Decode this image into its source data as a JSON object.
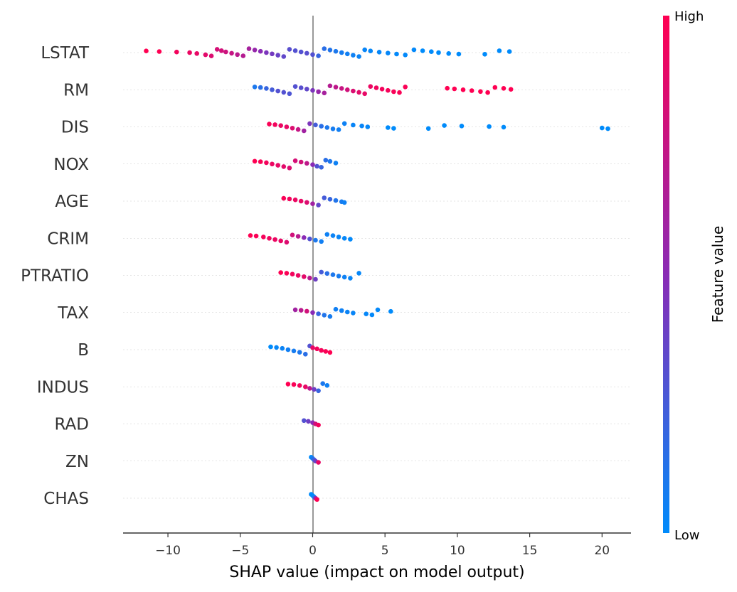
{
  "chart_data": {
    "type": "scatter",
    "subtype": "shap-beeswarm",
    "title": "",
    "xlabel": "SHAP value (impact on model output)",
    "ylabel": "",
    "xlim": [
      -13.1,
      22.0
    ],
    "xticks": [
      -10,
      -5,
      0,
      5,
      10,
      15,
      20
    ],
    "xtick_labels": [
      "−10",
      "−5",
      "0",
      "5",
      "10",
      "15",
      "20"
    ],
    "grid": false,
    "colorbar": {
      "title": "Feature value",
      "high_label": "High",
      "low_label": "Low",
      "high_color": "#ff0052",
      "mid_color": "#8a2bb5",
      "low_color": "#008bfb"
    },
    "features": [
      {
        "name": "LSTAT",
        "points": [
          [
            -11.5,
            1.0
          ],
          [
            -10.6,
            1.0
          ],
          [
            -9.4,
            0.95
          ],
          [
            -8.5,
            0.92
          ],
          [
            -8.0,
            0.9
          ],
          [
            -7.4,
            0.88
          ],
          [
            -7.0,
            0.85
          ],
          [
            -6.6,
            0.82
          ],
          [
            -6.3,
            0.8
          ],
          [
            -6.0,
            0.78
          ],
          [
            -5.6,
            0.75
          ],
          [
            -5.2,
            0.7
          ],
          [
            -4.8,
            0.68
          ],
          [
            -4.4,
            0.62
          ],
          [
            -4.0,
            0.55
          ],
          [
            -3.6,
            0.5
          ],
          [
            -3.2,
            0.45
          ],
          [
            -2.8,
            0.42
          ],
          [
            -2.4,
            0.38
          ],
          [
            -2.0,
            0.35
          ],
          [
            -1.6,
            0.32
          ],
          [
            -1.2,
            0.3
          ],
          [
            -0.8,
            0.3
          ],
          [
            -0.4,
            0.32
          ],
          [
            0.0,
            0.3
          ],
          [
            0.4,
            0.2
          ],
          [
            0.8,
            0.15
          ],
          [
            1.2,
            0.12
          ],
          [
            1.6,
            0.1
          ],
          [
            2.0,
            0.08
          ],
          [
            2.4,
            0.06
          ],
          [
            2.8,
            0.05
          ],
          [
            3.2,
            0.04
          ],
          [
            3.6,
            0.03
          ],
          [
            4.0,
            0.02
          ],
          [
            4.6,
            0.02
          ],
          [
            5.2,
            0.02
          ],
          [
            5.8,
            0.01
          ],
          [
            6.4,
            0.01
          ],
          [
            7.0,
            0.01
          ],
          [
            7.6,
            0.0
          ],
          [
            8.2,
            0.0
          ],
          [
            8.7,
            0.0
          ],
          [
            9.4,
            0.0
          ],
          [
            10.1,
            0.0
          ],
          [
            11.9,
            0.0
          ],
          [
            12.9,
            0.0
          ],
          [
            13.6,
            0.0
          ]
        ]
      },
      {
        "name": "RM",
        "points": [
          [
            -4.0,
            0.1
          ],
          [
            -3.6,
            0.15
          ],
          [
            -3.2,
            0.2
          ],
          [
            -2.8,
            0.25
          ],
          [
            -2.4,
            0.3
          ],
          [
            -2.0,
            0.3
          ],
          [
            -1.6,
            0.28
          ],
          [
            -1.2,
            0.3
          ],
          [
            -0.8,
            0.32
          ],
          [
            -0.4,
            0.35
          ],
          [
            0.0,
            0.45
          ],
          [
            0.4,
            0.55
          ],
          [
            0.8,
            0.62
          ],
          [
            1.2,
            0.68
          ],
          [
            1.6,
            0.72
          ],
          [
            2.0,
            0.76
          ],
          [
            2.4,
            0.8
          ],
          [
            2.8,
            0.84
          ],
          [
            3.2,
            0.88
          ],
          [
            3.6,
            0.9
          ],
          [
            4.0,
            0.92
          ],
          [
            4.4,
            0.94
          ],
          [
            4.8,
            0.95
          ],
          [
            5.2,
            0.96
          ],
          [
            5.6,
            0.97
          ],
          [
            6.0,
            0.98
          ],
          [
            6.4,
            0.98
          ],
          [
            9.3,
            1.0
          ],
          [
            9.8,
            1.0
          ],
          [
            10.4,
            1.0
          ],
          [
            11.0,
            1.0
          ],
          [
            11.6,
            1.0
          ],
          [
            12.1,
            1.0
          ],
          [
            12.6,
            1.0
          ],
          [
            13.2,
            1.0
          ],
          [
            13.7,
            1.0
          ]
        ]
      },
      {
        "name": "DIS",
        "points": [
          [
            -3.0,
            0.98
          ],
          [
            -2.6,
            0.95
          ],
          [
            -2.2,
            0.92
          ],
          [
            -1.8,
            0.9
          ],
          [
            -1.4,
            0.85
          ],
          [
            -1.0,
            0.75
          ],
          [
            -0.6,
            0.6
          ],
          [
            -0.2,
            0.45
          ],
          [
            0.2,
            0.25
          ],
          [
            0.6,
            0.15
          ],
          [
            1.0,
            0.1
          ],
          [
            1.4,
            0.08
          ],
          [
            1.8,
            0.06
          ],
          [
            2.2,
            0.05
          ],
          [
            2.8,
            0.03
          ],
          [
            3.4,
            0.03
          ],
          [
            3.8,
            0.02
          ],
          [
            5.2,
            0.0
          ],
          [
            5.6,
            0.0
          ],
          [
            8.0,
            0.0
          ],
          [
            9.1,
            0.0
          ],
          [
            10.3,
            0.0
          ],
          [
            12.2,
            0.0
          ],
          [
            13.2,
            0.0
          ],
          [
            20.0,
            0.0
          ],
          [
            20.4,
            0.0
          ]
        ]
      },
      {
        "name": "NOX",
        "points": [
          [
            -4.0,
            1.0
          ],
          [
            -3.6,
            0.98
          ],
          [
            -3.2,
            0.95
          ],
          [
            -2.8,
            0.92
          ],
          [
            -2.4,
            0.9
          ],
          [
            -2.0,
            0.88
          ],
          [
            -1.6,
            0.85
          ],
          [
            -1.2,
            0.82
          ],
          [
            -0.8,
            0.8
          ],
          [
            -0.4,
            0.72
          ],
          [
            0.0,
            0.5
          ],
          [
            0.3,
            0.3
          ],
          [
            0.6,
            0.2
          ],
          [
            0.9,
            0.15
          ],
          [
            1.2,
            0.1
          ],
          [
            1.6,
            0.05
          ]
        ]
      },
      {
        "name": "AGE",
        "points": [
          [
            -2.0,
            0.98
          ],
          [
            -1.6,
            0.95
          ],
          [
            -1.2,
            0.92
          ],
          [
            -0.8,
            0.9
          ],
          [
            -0.4,
            0.85
          ],
          [
            0.0,
            0.6
          ],
          [
            0.4,
            0.35
          ],
          [
            0.8,
            0.25
          ],
          [
            1.2,
            0.2
          ],
          [
            1.6,
            0.12
          ],
          [
            2.0,
            0.08
          ],
          [
            2.2,
            0.05
          ]
        ]
      },
      {
        "name": "CRIM",
        "points": [
          [
            -4.3,
            1.0
          ],
          [
            -3.9,
            0.98
          ],
          [
            -3.4,
            0.96
          ],
          [
            -3.0,
            0.94
          ],
          [
            -2.6,
            0.92
          ],
          [
            -2.2,
            0.9
          ],
          [
            -1.8,
            0.85
          ],
          [
            -1.4,
            0.8
          ],
          [
            -1.0,
            0.7
          ],
          [
            -0.6,
            0.5
          ],
          [
            -0.2,
            0.3
          ],
          [
            0.2,
            0.1
          ],
          [
            0.6,
            0.06
          ],
          [
            1.0,
            0.05
          ],
          [
            1.4,
            0.04
          ],
          [
            1.8,
            0.03
          ],
          [
            2.2,
            0.02
          ],
          [
            2.6,
            0.01
          ]
        ]
      },
      {
        "name": "PTRATIO",
        "points": [
          [
            -2.2,
            1.0
          ],
          [
            -1.8,
            0.98
          ],
          [
            -1.4,
            0.95
          ],
          [
            -1.0,
            0.92
          ],
          [
            -0.6,
            0.88
          ],
          [
            -0.2,
            0.7
          ],
          [
            0.2,
            0.4
          ],
          [
            0.6,
            0.25
          ],
          [
            1.0,
            0.15
          ],
          [
            1.4,
            0.1
          ],
          [
            1.8,
            0.08
          ],
          [
            2.2,
            0.05
          ],
          [
            2.6,
            0.03
          ],
          [
            3.2,
            0.02
          ]
        ]
      },
      {
        "name": "TAX",
        "points": [
          [
            -1.2,
            0.6
          ],
          [
            -0.8,
            0.7
          ],
          [
            -0.4,
            0.8
          ],
          [
            0.0,
            0.5
          ],
          [
            0.4,
            0.2
          ],
          [
            0.8,
            0.12
          ],
          [
            1.2,
            0.08
          ],
          [
            1.6,
            0.06
          ],
          [
            2.0,
            0.05
          ],
          [
            2.4,
            0.04
          ],
          [
            2.8,
            0.03
          ],
          [
            3.7,
            0.02
          ],
          [
            4.1,
            0.01
          ],
          [
            4.5,
            0.01
          ],
          [
            5.4,
            0.0
          ]
        ]
      },
      {
        "name": "B",
        "points": [
          [
            -2.9,
            0.0
          ],
          [
            -2.5,
            0.02
          ],
          [
            -2.1,
            0.04
          ],
          [
            -1.7,
            0.06
          ],
          [
            -1.3,
            0.08
          ],
          [
            -0.9,
            0.1
          ],
          [
            -0.5,
            0.15
          ],
          [
            -0.2,
            0.3
          ],
          [
            0.0,
            0.9
          ],
          [
            0.3,
            0.95
          ],
          [
            0.6,
            0.96
          ],
          [
            0.9,
            0.98
          ],
          [
            1.2,
            1.0
          ]
        ]
      },
      {
        "name": "INDUS",
        "points": [
          [
            -1.7,
            1.0
          ],
          [
            -1.3,
            0.98
          ],
          [
            -0.9,
            0.95
          ],
          [
            -0.5,
            0.9
          ],
          [
            -0.2,
            0.7
          ],
          [
            0.1,
            0.4
          ],
          [
            0.4,
            0.2
          ],
          [
            0.7,
            0.1
          ],
          [
            1.0,
            0.05
          ]
        ]
      },
      {
        "name": "RAD",
        "points": [
          [
            -0.6,
            0.3
          ],
          [
            -0.3,
            0.4
          ],
          [
            0.0,
            0.5
          ],
          [
            0.2,
            0.8
          ],
          [
            0.4,
            0.95
          ]
        ]
      },
      {
        "name": "ZN",
        "points": [
          [
            -0.1,
            0.0
          ],
          [
            0.0,
            0.1
          ],
          [
            0.1,
            0.2
          ],
          [
            0.2,
            0.4
          ],
          [
            0.4,
            0.9
          ]
        ]
      },
      {
        "name": "CHAS",
        "points": [
          [
            -0.1,
            0.0
          ],
          [
            0.0,
            0.0
          ],
          [
            0.1,
            0.05
          ],
          [
            0.2,
            0.5
          ],
          [
            0.3,
            1.0
          ]
        ]
      }
    ]
  }
}
